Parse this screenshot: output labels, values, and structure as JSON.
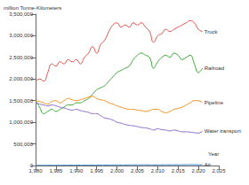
{
  "chart_data": {
    "type": "line",
    "x_label": "Year",
    "y_label": "million Tonne-Kilometers",
    "xlim": [
      1980,
      2025
    ],
    "xticks": [
      {
        "value": 1980,
        "label": "1,980"
      },
      {
        "value": 1985,
        "label": "1,985"
      },
      {
        "value": 1990,
        "label": "1,990"
      },
      {
        "value": 1995,
        "label": "1,995"
      },
      {
        "value": 2000,
        "label": "2,000"
      },
      {
        "value": 2005,
        "label": "2,005"
      },
      {
        "value": 2010,
        "label": "2,010"
      },
      {
        "value": 2015,
        "label": "2,015"
      },
      {
        "value": 2020,
        "label": "2,020"
      },
      {
        "value": 2025,
        "label": "2,025"
      }
    ],
    "ylim": [
      0,
      3500000
    ],
    "yticks": [
      0,
      {
        "value": 500000,
        "label": "500,000"
      },
      {
        "value": 1000000,
        "label": "1,000,000"
      },
      {
        "value": 1500000,
        "label": "1,500,000"
      },
      {
        "value": 2000000,
        "label": "2,000,000"
      },
      {
        "value": 2500000,
        "label": "2,500,000"
      },
      {
        "value": 3000000,
        "label": "3,000,000"
      },
      {
        "value": 3500000,
        "label": "3,500,000"
      }
    ],
    "grid": false,
    "x": [
      1980,
      1981,
      1982,
      1983,
      1984,
      1985,
      1986,
      1987,
      1988,
      1989,
      1990,
      1991,
      1992,
      1993,
      1994,
      1995,
      1996,
      1997,
      1998,
      1999,
      2000,
      2001,
      2002,
      2003,
      2004,
      2005,
      2006,
      2007,
      2008,
      2009,
      2010,
      2011,
      2012,
      2013,
      2014,
      2015,
      2016,
      2017,
      2018,
      2019,
      2020,
      2021
    ],
    "series": [
      {
        "name": "Truck",
        "color": "#e0524a",
        "values": [
          1950000,
          2000000,
          1950000,
          2150000,
          2350000,
          2300000,
          2400000,
          2350000,
          2450000,
          2400000,
          2450000,
          2350000,
          2500000,
          2600000,
          2750000,
          2600000,
          2800000,
          2900000,
          3100000,
          3250000,
          3300000,
          3200000,
          3250000,
          3200000,
          3300000,
          3250000,
          3300000,
          3200000,
          3100000,
          2850000,
          3000000,
          3050000,
          3150000,
          3100000,
          3150000,
          3200000,
          3250000,
          3300000,
          3350000,
          3300000,
          3150000,
          3100000
        ]
      },
      {
        "name": "Railroad",
        "color": "#3aaa35",
        "values": [
          1500000,
          1350000,
          1200000,
          1250000,
          1300000,
          1250000,
          1300000,
          1350000,
          1400000,
          1400000,
          1450000,
          1450000,
          1500000,
          1550000,
          1650000,
          1750000,
          1800000,
          1850000,
          1950000,
          2050000,
          2150000,
          2200000,
          2250000,
          2300000,
          2450000,
          2550000,
          2600000,
          2550000,
          2500000,
          2250000,
          2400000,
          2500000,
          2550000,
          2500000,
          2600000,
          2550000,
          2450000,
          2500000,
          2550000,
          2350000,
          2150000,
          2250000
        ]
      },
      {
        "name": "Pipeline",
        "color": "#f0901c",
        "values": [
          1500000,
          1480000,
          1450000,
          1420000,
          1480000,
          1500000,
          1450000,
          1500000,
          1550000,
          1520000,
          1500000,
          1520000,
          1550000,
          1580000,
          1600000,
          1550000,
          1520000,
          1500000,
          1450000,
          1420000,
          1380000,
          1350000,
          1320000,
          1300000,
          1300000,
          1280000,
          1270000,
          1250000,
          1270000,
          1300000,
          1300000,
          1250000,
          1220000,
          1250000,
          1300000,
          1320000,
          1350000,
          1400000,
          1450000,
          1500000,
          1500000,
          1450000
        ]
      },
      {
        "name": "Water transport",
        "color": "#8a6cc8",
        "values": [
          1450000,
          1420000,
          1400000,
          1380000,
          1400000,
          1380000,
          1350000,
          1330000,
          1300000,
          1280000,
          1300000,
          1270000,
          1250000,
          1230000,
          1200000,
          1200000,
          1150000,
          1100000,
          1080000,
          1050000,
          1000000,
          980000,
          950000,
          930000,
          920000,
          900000,
          880000,
          870000,
          850000,
          820000,
          850000,
          830000,
          820000,
          800000,
          820000,
          800000,
          780000,
          780000,
          770000,
          760000,
          750000,
          800000
        ]
      },
      {
        "name": "Air",
        "color": "#3a86d4",
        "values": [
          5000,
          5000,
          5000,
          6000,
          6000,
          7000,
          7000,
          8000,
          8000,
          9000,
          9000,
          9000,
          10000,
          10000,
          11000,
          12000,
          12000,
          13000,
          13000,
          14000,
          15000,
          14000,
          14000,
          15000,
          16000,
          16000,
          16000,
          17000,
          16000,
          15000,
          16000,
          16000,
          17000,
          17000,
          18000,
          18000,
          19000,
          20000,
          21000,
          21000,
          17000,
          20000
        ]
      }
    ]
  }
}
